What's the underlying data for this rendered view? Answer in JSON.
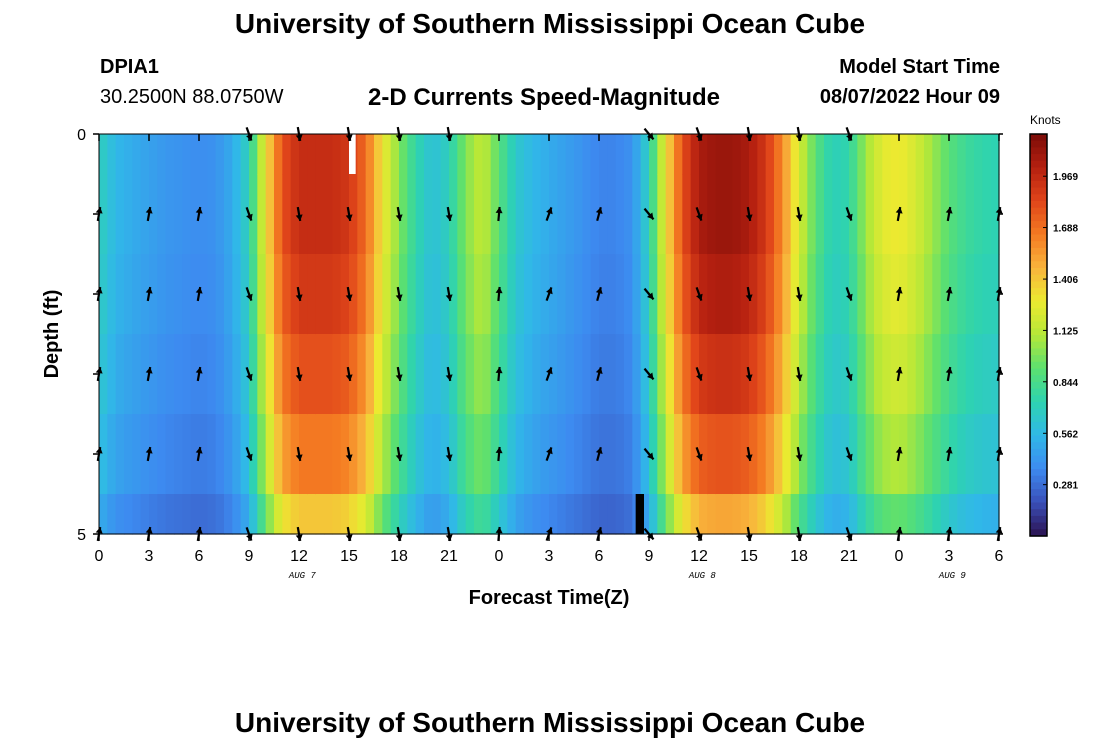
{
  "header": {
    "title": "University of Southern Mississippi Ocean Cube",
    "station_id": "DPIA1",
    "coordinates": "30.2500N  88.0750W",
    "subtitle": "2-D Currents Speed-Magnitude",
    "model_start_label": "Model Start Time",
    "model_start_value": "08/07/2022 Hour 09"
  },
  "footer": {
    "title": "University of Southern Mississippi Ocean Cube"
  },
  "chart_data": {
    "type": "heatmap",
    "title": "2-D Currents Speed-Magnitude",
    "xlabel": "Forecast Time(Z)",
    "ylabel": "Depth (ft)",
    "x_range_hours": [
      0,
      54
    ],
    "x_tick_labels": [
      "0",
      "3",
      "6",
      "9",
      "12",
      "15",
      "18",
      "21",
      "0",
      "3",
      "6",
      "9",
      "12",
      "15",
      "18",
      "21",
      "0",
      "3",
      "6"
    ],
    "date_labels": [
      {
        "label": "AUG 7",
        "hour": 11
      },
      {
        "label": "AUG 8",
        "hour": 35
      },
      {
        "label": "AUG 9",
        "hour": 50
      }
    ],
    "y_range_ft": [
      0,
      5
    ],
    "y_tick_labels": [
      "0",
      "5"
    ],
    "depth_levels_ft": [
      0,
      1,
      2,
      3,
      4,
      5
    ],
    "colorbar": {
      "units": "Knots",
      "tick_values": [
        "0.281",
        "0.562",
        "0.844",
        "1.125",
        "1.406",
        "1.688",
        "1.969"
      ],
      "min": 0.0,
      "max": 2.2,
      "colors": [
        "#2b1250",
        "#3a4fb8",
        "#3d8af0",
        "#30b8e8",
        "#2ed3b0",
        "#5be070",
        "#b5e838",
        "#ecea30",
        "#f8b43c",
        "#f47a22",
        "#e0451a",
        "#b52010",
        "#7a0c08"
      ]
    },
    "speed_profile_knots": [
      [
        0,
        0.7
      ],
      [
        1,
        0.55
      ],
      [
        2,
        0.5
      ],
      [
        3,
        0.46
      ],
      [
        4,
        0.42
      ],
      [
        5,
        0.4
      ],
      [
        6,
        0.38
      ],
      [
        7,
        0.4
      ],
      [
        8,
        0.5
      ],
      [
        9,
        0.7
      ],
      [
        10,
        1.3
      ],
      [
        11,
        1.8
      ],
      [
        12,
        1.95
      ],
      [
        13,
        1.95
      ],
      [
        14,
        1.95
      ],
      [
        15,
        1.9
      ],
      [
        16,
        1.7
      ],
      [
        17,
        1.3
      ],
      [
        18,
        1.0
      ],
      [
        19,
        0.75
      ],
      [
        20,
        0.6
      ],
      [
        21,
        0.7
      ],
      [
        22,
        1.0
      ],
      [
        23,
        1.15
      ],
      [
        24,
        0.9
      ],
      [
        25,
        0.65
      ],
      [
        26,
        0.55
      ],
      [
        27,
        0.5
      ],
      [
        28,
        0.45
      ],
      [
        29,
        0.4
      ],
      [
        30,
        0.35
      ],
      [
        31,
        0.35
      ],
      [
        32,
        0.4
      ],
      [
        33,
        0.7
      ],
      [
        34,
        1.3
      ],
      [
        35,
        1.8
      ],
      [
        36,
        2.05
      ],
      [
        37,
        2.1
      ],
      [
        38,
        2.1
      ],
      [
        39,
        2.05
      ],
      [
        40,
        1.9
      ],
      [
        41,
        1.6
      ],
      [
        42,
        1.2
      ],
      [
        43,
        0.9
      ],
      [
        44,
        0.7
      ],
      [
        45,
        0.75
      ],
      [
        46,
        1.05
      ],
      [
        47,
        1.25
      ],
      [
        48,
        1.3
      ],
      [
        49,
        1.2
      ],
      [
        50,
        1.05
      ],
      [
        51,
        0.9
      ],
      [
        52,
        0.8
      ],
      [
        53,
        0.75
      ],
      [
        54,
        0.72
      ]
    ],
    "depth_speed_factor": [
      1.0,
      1.0,
      0.97,
      0.92,
      0.85,
      0.72
    ],
    "arrows": {
      "hours": [
        0,
        3,
        6,
        9,
        12,
        15,
        18,
        21,
        24,
        27,
        30,
        33,
        36,
        39,
        42,
        45,
        48,
        51,
        54
      ],
      "angles_deg": [
        10,
        10,
        10,
        160,
        170,
        170,
        170,
        170,
        5,
        20,
        15,
        140,
        160,
        170,
        170,
        160,
        10,
        10,
        10
      ]
    },
    "missing_cells": [
      {
        "hour_start": 15.0,
        "hour_end": 15.4,
        "depth_start_ft": 0,
        "depth_end_ft": 0.5,
        "fill": "white"
      },
      {
        "hour_start": 32.2,
        "hour_end": 32.7,
        "depth_start_ft": 4.5,
        "depth_end_ft": 5,
        "fill": "black"
      }
    ]
  }
}
